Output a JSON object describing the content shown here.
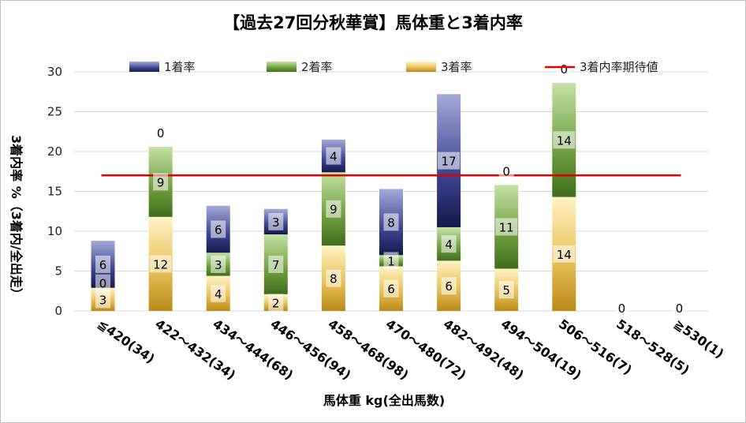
{
  "chart_data": {
    "type": "bar",
    "stacked": true,
    "title": "【過去27回分秋華賞】馬体重と3着内率",
    "xlabel": "馬体重 kg(全出馬数)",
    "ylabel": "3着内率 %（3着内/全出走）",
    "ylim": [
      0,
      30
    ],
    "yticks": [
      0,
      5,
      10,
      15,
      20,
      25,
      30
    ],
    "grid": true,
    "legend_position": "top",
    "categories": [
      "≦420(34)",
      "422～432(34)",
      "434～444(68)",
      "446～456(94)",
      "458～468(98)",
      "470～480(72)",
      "482～492(48)",
      "494～504(19)",
      "506～516(7)",
      "518～528(5)",
      "≧530(1)"
    ],
    "series": [
      {
        "name": "3着率",
        "color": "#e9c25c",
        "values": [
          2.9,
          11.8,
          4.4,
          2.1,
          8.2,
          5.6,
          6.3,
          5.3,
          14.3,
          0,
          0
        ],
        "labels": [
          "3",
          "12",
          "4",
          "2",
          "8",
          "6",
          "6",
          "5",
          "14",
          "0",
          "0"
        ]
      },
      {
        "name": "2着率",
        "color": "#6e9e3e",
        "values": [
          0,
          8.8,
          2.9,
          7.5,
          9.2,
          1.4,
          4.2,
          10.5,
          14.3,
          0,
          0
        ],
        "labels": [
          "0",
          "9",
          "3",
          "7",
          "9",
          "1",
          "4",
          "11",
          "14",
          "",
          ""
        ]
      },
      {
        "name": "1着率",
        "color": "#3c4590",
        "values": [
          5.9,
          0,
          5.9,
          3.2,
          4.1,
          8.3,
          16.7,
          0,
          0,
          0,
          0
        ],
        "labels": [
          "6",
          "0",
          "6",
          "3",
          "4",
          "8",
          "17",
          "0",
          "0",
          "",
          ""
        ]
      }
    ],
    "reference_line": {
      "name": "3着内率期待値",
      "value": 17.0,
      "color": "#e00000"
    },
    "legend": [
      {
        "name": "1着率",
        "color": "#3c4590"
      },
      {
        "name": "2着率",
        "color": "#6e9e3e"
      },
      {
        "name": "3着率",
        "color": "#e9c25c"
      },
      {
        "name": "3着内率期待値",
        "color": "#e00000"
      }
    ]
  }
}
